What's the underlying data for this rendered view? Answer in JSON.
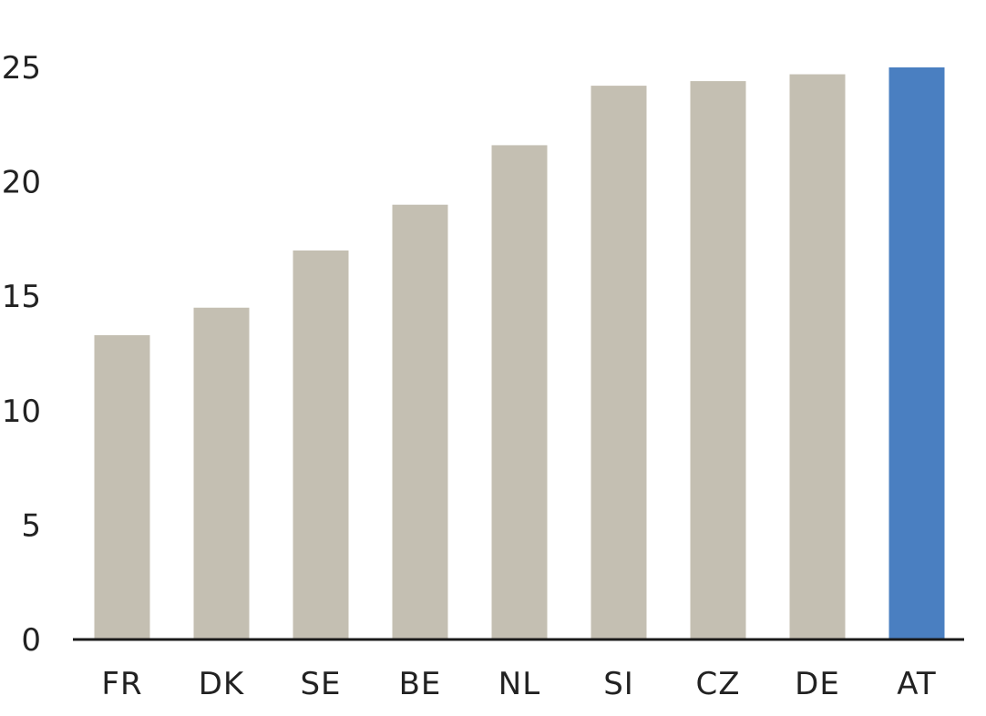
{
  "chart_data": {
    "type": "bar",
    "title": "",
    "xlabel": "",
    "ylabel": "",
    "categories": [
      "FR",
      "DK",
      "SE",
      "BE",
      "NL",
      "SI",
      "CZ",
      "DE",
      "AT"
    ],
    "values": [
      13.3,
      14.5,
      17.0,
      19.0,
      21.6,
      24.2,
      24.4,
      24.7,
      25.0
    ],
    "ylim": [
      0,
      25
    ],
    "yticks": [
      "0",
      "5",
      "10",
      "15",
      "20",
      "25"
    ],
    "grid": false,
    "legend": "none",
    "colors": {
      "default_bar": "#c4bfb2",
      "highlight_bar": "#4a7fc1",
      "axis": "#1a1a1a",
      "text": "#222222"
    },
    "highlight_category": "AT"
  }
}
